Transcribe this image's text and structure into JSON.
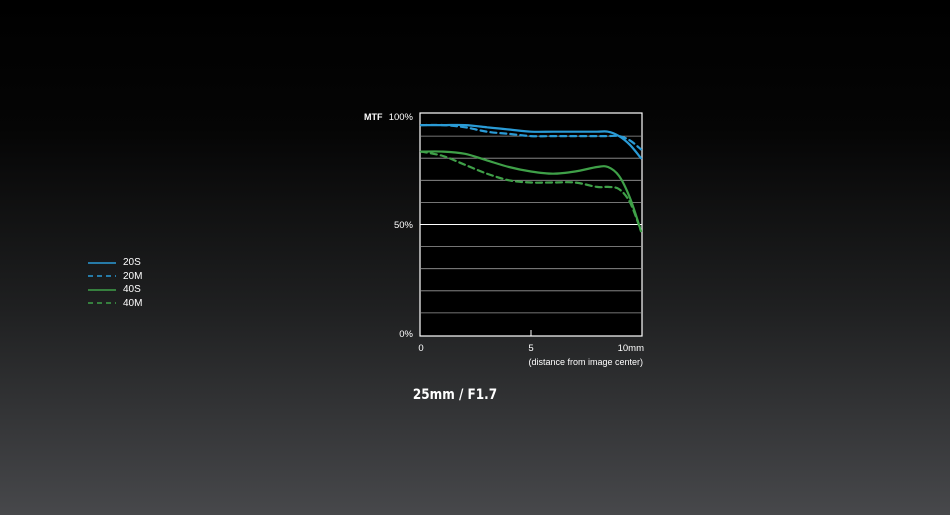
{
  "chart_data": {
    "type": "line",
    "ylabel": "MTF",
    "xlabel": "(distance from image center)",
    "x_ticks": [
      "0",
      "5",
      "10mm"
    ],
    "y_ticks": [
      "0%",
      "50%",
      "100%"
    ],
    "xlim": [
      0,
      10
    ],
    "ylim": [
      0,
      100
    ],
    "grid": true,
    "legend_position": "left",
    "series": [
      {
        "name": "20S",
        "color": "#2a9bd6",
        "style": "solid",
        "x": [
          0,
          1,
          2,
          3,
          4,
          5,
          6,
          7,
          8,
          8.5,
          9,
          9.5,
          10
        ],
        "y": [
          95,
          95,
          95,
          94,
          93,
          92,
          92,
          92,
          92,
          92,
          90,
          86,
          80
        ]
      },
      {
        "name": "20M",
        "color": "#2a9bd6",
        "style": "dashed",
        "x": [
          0,
          1,
          2,
          3,
          4,
          5,
          6,
          7,
          8,
          8.5,
          9,
          9.5,
          10
        ],
        "y": [
          95,
          95,
          94,
          92,
          91,
          90,
          90,
          90,
          90,
          90,
          90,
          88,
          84
        ]
      },
      {
        "name": "40S",
        "color": "#3fa048",
        "style": "solid",
        "x": [
          0,
          1,
          2,
          3,
          4,
          5,
          6,
          7,
          8,
          8.5,
          9,
          9.5,
          10
        ],
        "y": [
          83,
          83,
          82,
          79,
          76,
          74,
          73,
          74,
          76,
          76,
          72,
          62,
          47
        ]
      },
      {
        "name": "40M",
        "color": "#3fa048",
        "style": "dashed",
        "x": [
          0,
          1,
          2,
          3,
          4,
          5,
          6,
          7,
          8,
          8.5,
          9,
          9.5,
          10
        ],
        "y": [
          83,
          81,
          77,
          73,
          70,
          69,
          69,
          69,
          67,
          67,
          66,
          60,
          47
        ]
      }
    ]
  },
  "caption": "25mm / F1.7"
}
